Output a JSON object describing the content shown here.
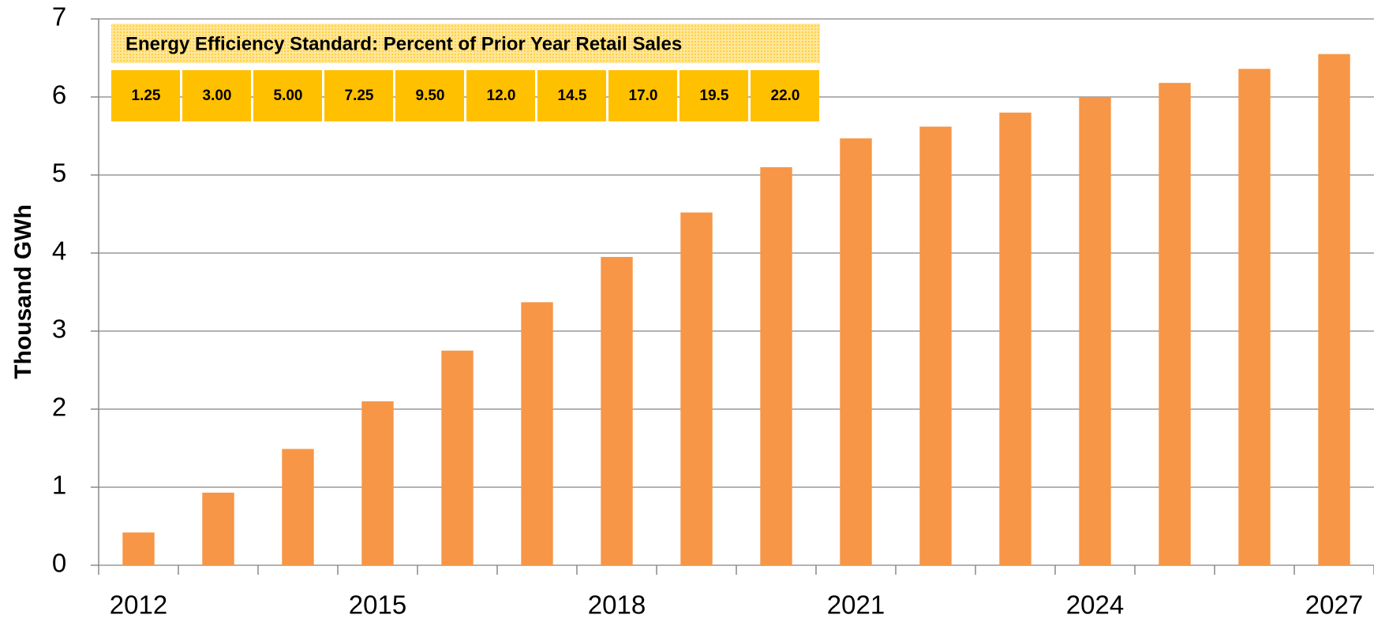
{
  "chart_data": {
    "type": "bar",
    "y_label": "Thousand GWh",
    "categories": [
      "2012",
      null,
      null,
      "2015",
      null,
      null,
      "2018",
      null,
      null,
      "2021",
      null,
      null,
      "2024",
      null,
      null,
      "2027"
    ],
    "values": [
      0.42,
      0.93,
      1.49,
      2.1,
      2.75,
      3.37,
      3.95,
      4.52,
      5.1,
      5.47,
      5.62,
      5.8,
      6.0,
      6.18,
      6.36,
      6.55
    ],
    "color": "#f79646",
    "ylim": [
      0,
      7
    ],
    "yticks": [
      0,
      1,
      2,
      3,
      4,
      5,
      6,
      7
    ],
    "grid": true,
    "annotation": {
      "title": "Energy Efficiency Standard: Percent of Prior Year Retail Sales",
      "cells": [
        "1.25",
        "3.00",
        "5.00",
        "7.25",
        "9.50",
        "12.0",
        "14.5",
        "17.0",
        "19.5",
        "22.0"
      ]
    }
  }
}
